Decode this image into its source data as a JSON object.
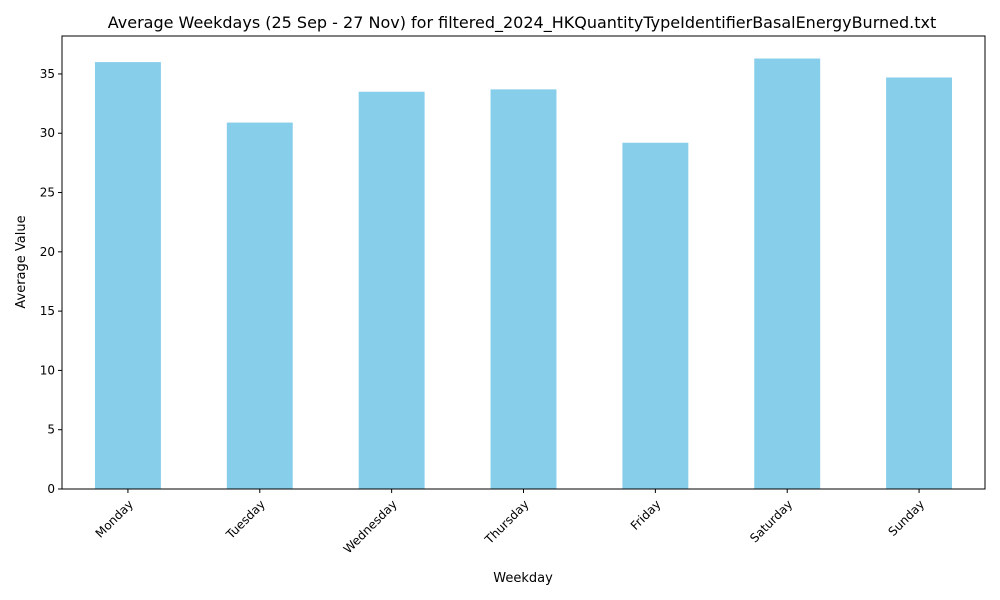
{
  "chart_data": {
    "type": "bar",
    "title": "Average Weekdays (25 Sep - 27 Nov) for filtered_2024_HKQuantityTypeIdentifierBasalEnergyBurned.txt",
    "xlabel": "Weekday",
    "ylabel": "Average Value",
    "categories": [
      "Monday",
      "Tuesday",
      "Wednesday",
      "Thursday",
      "Friday",
      "Saturday",
      "Sunday"
    ],
    "values": [
      36.0,
      30.9,
      33.5,
      33.7,
      29.2,
      36.3,
      34.7
    ],
    "ylim": [
      0,
      38.2
    ],
    "yticks": [
      0,
      5,
      10,
      15,
      20,
      25,
      30,
      35
    ],
    "grid": false,
    "legend": "none",
    "bar_color": "#87ceeb",
    "x_tick_rotation_deg": 45
  }
}
